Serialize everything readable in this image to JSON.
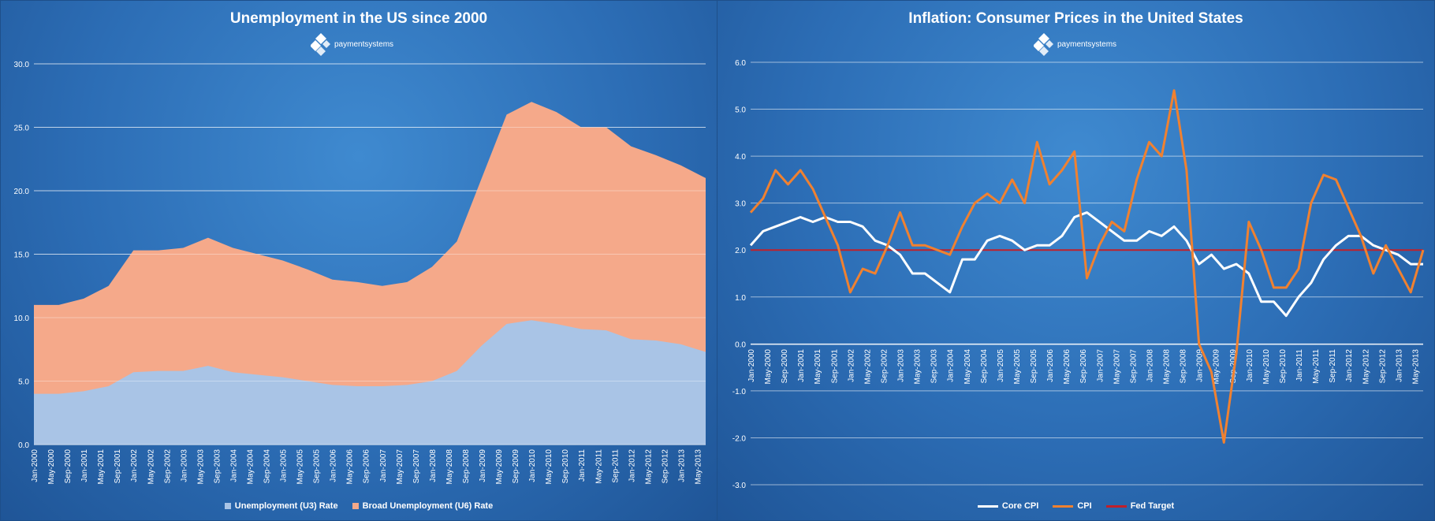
{
  "chart_data": [
    {
      "type": "area",
      "title": "Unemployment  in the US since 2000",
      "logo_text": "paymentsystems",
      "ylim": [
        0,
        30
      ],
      "yticks": [
        "0.0",
        "5.0",
        "10.0",
        "15.0",
        "20.0",
        "25.0",
        "30.0"
      ],
      "xtick_labels": [
        "Jan-2000",
        "May-2000",
        "Sep-2000",
        "Jan-2001",
        "May-2001",
        "Sep-2001",
        "Jan-2002",
        "May-2002",
        "Sep-2002",
        "Jan-2003",
        "May-2003",
        "Sep-2003",
        "Jan-2004",
        "May-2004",
        "Sep-2004",
        "Jan-2005",
        "May-2005",
        "Sep-2005",
        "Jan-2006",
        "May-2006",
        "Sep-2006",
        "Jan-2007",
        "May-2007",
        "Sep-2007",
        "Jan-2008",
        "May-2008",
        "Sep-2008",
        "Jan-2009",
        "May-2009",
        "Sep-2009",
        "Jan-2010",
        "May-2010",
        "Sep-2010",
        "Jan-2011",
        "May-2011",
        "Sep-2011",
        "Jan-2012",
        "May-2012",
        "Sep-2012",
        "Jan-2013",
        "May-2013"
      ],
      "x": [
        "2000-01",
        "2000-07",
        "2001-01",
        "2001-07",
        "2002-01",
        "2002-07",
        "2003-01",
        "2003-07",
        "2004-01",
        "2004-07",
        "2005-01",
        "2005-07",
        "2006-01",
        "2006-07",
        "2007-01",
        "2007-07",
        "2008-01",
        "2008-07",
        "2009-01",
        "2009-07",
        "2010-01",
        "2010-07",
        "2011-01",
        "2011-07",
        "2012-01",
        "2012-07",
        "2013-01",
        "2013-07"
      ],
      "series": [
        {
          "name": "Unemployment (U3) Rate",
          "color": "#a9c4e6",
          "values": [
            4.0,
            4.0,
            4.2,
            4.6,
            5.7,
            5.8,
            5.8,
            6.2,
            5.7,
            5.5,
            5.3,
            5.0,
            4.7,
            4.6,
            4.6,
            4.7,
            5.0,
            5.8,
            7.8,
            9.5,
            9.8,
            9.5,
            9.1,
            9.0,
            8.3,
            8.2,
            7.9,
            7.3
          ]
        },
        {
          "name": "Broad Unemployment (U6) Rate",
          "color": "#f5a98a",
          "values": [
            11.0,
            11.0,
            11.5,
            12.5,
            15.3,
            15.3,
            15.5,
            16.3,
            15.5,
            15.0,
            14.5,
            13.8,
            13.0,
            12.8,
            12.5,
            12.8,
            14.0,
            16.0,
            21.0,
            26.0,
            27.0,
            26.2,
            25.0,
            25.0,
            23.5,
            22.8,
            22.0,
            21.0
          ]
        }
      ],
      "legend_position": "bottom"
    },
    {
      "type": "line",
      "title": "Inflation: Consumer Prices in the United States",
      "logo_text": "paymentsystems",
      "ylim": [
        -3,
        6
      ],
      "yticks": [
        "-3.0",
        "-2.0",
        "-1.0",
        "0.0",
        "1.0",
        "2.0",
        "3.0",
        "4.0",
        "5.0",
        "6.0"
      ],
      "xtick_labels": [
        "Jan-2000",
        "May-2000",
        "Sep-2000",
        "Jan-2001",
        "May-2001",
        "Sep-2001",
        "Jan-2002",
        "May-2002",
        "Sep-2002",
        "Jan-2003",
        "May-2003",
        "Sep-2003",
        "Jan-2004",
        "May-2004",
        "Sep-2004",
        "Jan-2005",
        "May-2005",
        "Sep-2005",
        "Jan-2006",
        "May-2006",
        "Sep-2006",
        "Jan-2007",
        "May-2007",
        "Sep-2007",
        "Jan-2008",
        "May-2008",
        "Sep-2008",
        "Jan-2009",
        "May-2009",
        "Sep-2009",
        "Jan-2010",
        "May-2010",
        "Sep-2010",
        "Jan-2011",
        "May-2011",
        "Sep-2011",
        "Jan-2012",
        "May-2012",
        "Sep-2012",
        "Jan-2013",
        "May-2013"
      ],
      "x": [
        "2000-01",
        "2000-04",
        "2000-07",
        "2000-10",
        "2001-01",
        "2001-04",
        "2001-07",
        "2001-10",
        "2002-01",
        "2002-04",
        "2002-07",
        "2002-10",
        "2003-01",
        "2003-04",
        "2003-07",
        "2003-10",
        "2004-01",
        "2004-04",
        "2004-07",
        "2004-10",
        "2005-01",
        "2005-04",
        "2005-07",
        "2005-10",
        "2006-01",
        "2006-04",
        "2006-07",
        "2006-10",
        "2007-01",
        "2007-04",
        "2007-07",
        "2007-10",
        "2008-01",
        "2008-04",
        "2008-07",
        "2008-10",
        "2009-01",
        "2009-04",
        "2009-07",
        "2009-10",
        "2010-01",
        "2010-04",
        "2010-07",
        "2010-10",
        "2011-01",
        "2011-04",
        "2011-07",
        "2011-10",
        "2012-01",
        "2012-04",
        "2012-07",
        "2012-10",
        "2013-01",
        "2013-04",
        "2013-07"
      ],
      "series": [
        {
          "name": "Core CPI",
          "color": "#ffffff",
          "values": [
            2.1,
            2.4,
            2.5,
            2.6,
            2.7,
            2.6,
            2.7,
            2.6,
            2.6,
            2.5,
            2.2,
            2.1,
            1.9,
            1.5,
            1.5,
            1.3,
            1.1,
            1.8,
            1.8,
            2.2,
            2.3,
            2.2,
            2.0,
            2.1,
            2.1,
            2.3,
            2.7,
            2.8,
            2.6,
            2.4,
            2.2,
            2.2,
            2.4,
            2.3,
            2.5,
            2.2,
            1.7,
            1.9,
            1.6,
            1.7,
            1.5,
            0.9,
            0.9,
            0.6,
            1.0,
            1.3,
            1.8,
            2.1,
            2.3,
            2.3,
            2.1,
            2.0,
            1.9,
            1.7,
            1.7
          ]
        },
        {
          "name": "CPI",
          "color": "#f08130",
          "values": [
            2.8,
            3.1,
            3.7,
            3.4,
            3.7,
            3.3,
            2.7,
            2.1,
            1.1,
            1.6,
            1.5,
            2.1,
            2.8,
            2.1,
            2.1,
            2.0,
            1.9,
            2.5,
            3.0,
            3.2,
            3.0,
            3.5,
            3.0,
            4.3,
            3.4,
            3.7,
            4.1,
            1.4,
            2.1,
            2.6,
            2.4,
            3.5,
            4.3,
            4.0,
            5.4,
            3.7,
            0.0,
            -0.6,
            -2.1,
            -0.2,
            2.6,
            2.0,
            1.2,
            1.2,
            1.6,
            3.0,
            3.6,
            3.5,
            2.9,
            2.3,
            1.5,
            2.1,
            1.6,
            1.1,
            2.0
          ]
        },
        {
          "name": "Fed Target",
          "color": "#c0202a",
          "values": [
            2.0,
            2.0,
            2.0,
            2.0,
            2.0,
            2.0,
            2.0,
            2.0,
            2.0,
            2.0,
            2.0,
            2.0,
            2.0,
            2.0,
            2.0,
            2.0,
            2.0,
            2.0,
            2.0,
            2.0,
            2.0,
            2.0,
            2.0,
            2.0,
            2.0,
            2.0,
            2.0,
            2.0,
            2.0,
            2.0,
            2.0,
            2.0,
            2.0,
            2.0,
            2.0,
            2.0,
            2.0,
            2.0,
            2.0,
            2.0,
            2.0,
            2.0,
            2.0,
            2.0,
            2.0,
            2.0,
            2.0,
            2.0,
            2.0,
            2.0,
            2.0,
            2.0,
            2.0,
            2.0,
            2.0
          ]
        }
      ],
      "legend_position": "bottom"
    }
  ]
}
